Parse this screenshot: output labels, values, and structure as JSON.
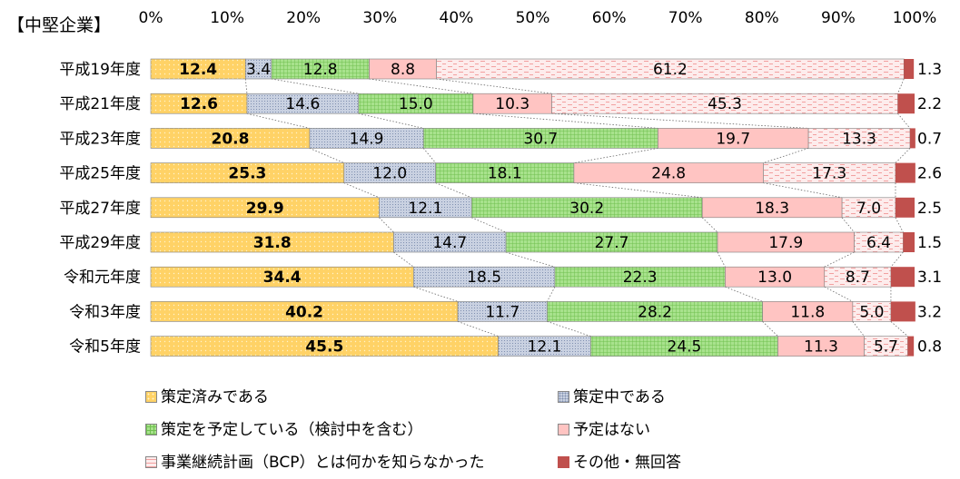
{
  "chart_data": {
    "type": "bar",
    "orientation": "horizontal",
    "stacked": true,
    "title": "【中堅企業】",
    "xlabel": "",
    "ylabel": "",
    "xlim": [
      0,
      100
    ],
    "x_ticks": [
      "0%",
      "10%",
      "20%",
      "30%",
      "40%",
      "50%",
      "60%",
      "70%",
      "80%",
      "90%",
      "100%"
    ],
    "categories": [
      "平成19年度",
      "平成21年度",
      "平成23年度",
      "平成25年度",
      "平成27年度",
      "平成29年度",
      "令和元年度",
      "令和3年度",
      "令和5年度"
    ],
    "series": [
      {
        "name": "策定済みである",
        "color": "#ffd266",
        "pattern": "dots-light",
        "values": [
          12.4,
          12.6,
          20.8,
          25.3,
          29.9,
          31.8,
          34.4,
          40.2,
          45.5
        ]
      },
      {
        "name": "策定中である",
        "color": "#c9d1e1",
        "pattern": "dots-dense",
        "values": [
          3.4,
          14.6,
          14.9,
          12.0,
          12.1,
          14.7,
          18.5,
          11.7,
          12.1
        ]
      },
      {
        "name": "策定を予定している（検討中を含む）",
        "color": "#a8e28d",
        "pattern": "grid",
        "values": [
          12.8,
          15.0,
          30.7,
          18.1,
          30.2,
          27.7,
          22.3,
          28.2,
          24.5
        ]
      },
      {
        "name": "予定はない",
        "color": "#ffc4c2",
        "pattern": "solid",
        "values": [
          8.8,
          10.3,
          19.7,
          24.8,
          18.3,
          17.9,
          13.0,
          11.8,
          11.3
        ]
      },
      {
        "name": "事業継続計画（BCP）とは何かを知らなかった",
        "color": "#fde8e8",
        "pattern": "dashes",
        "values": [
          61.2,
          45.3,
          13.3,
          17.3,
          7.0,
          6.4,
          8.7,
          5.0,
          5.7
        ]
      },
      {
        "name": "その他・無回答",
        "color": "#c0504d",
        "pattern": "solid",
        "values": [
          1.3,
          2.2,
          0.7,
          2.6,
          2.5,
          1.5,
          3.1,
          3.2,
          0.8
        ]
      }
    ],
    "grid": false,
    "legend_position": "bottom",
    "connector_lines": "dotted"
  }
}
